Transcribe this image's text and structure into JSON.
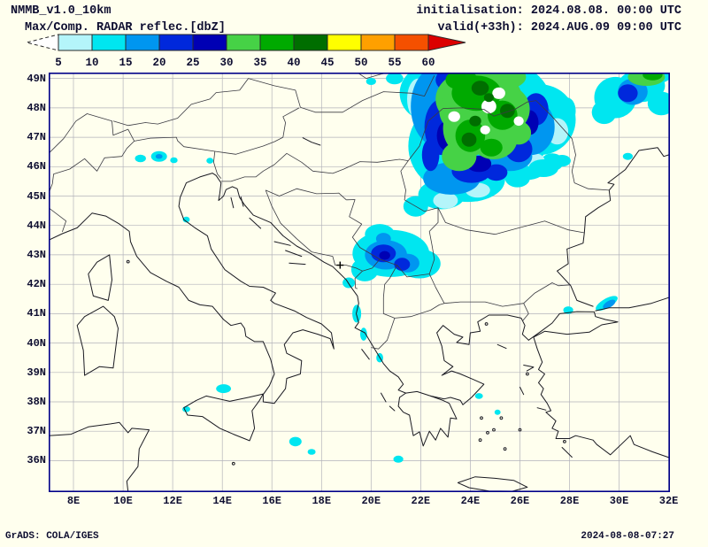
{
  "header": {
    "model": "NMMB_v1.0_10km",
    "product": "Max/Comp. RADAR reflec.[dbZ]",
    "init": "initialisation: 2024.08.08. 00:00 UTC",
    "valid": "valid(+33h): 2024.AUG.09 09:00 UTC"
  },
  "colorbar": {
    "tick_labels": [
      "5",
      "10",
      "15",
      "20",
      "25",
      "30",
      "35",
      "40",
      "45",
      "50",
      "55",
      "60"
    ],
    "tail_color": "#ffffff",
    "head_color": "#dc0000",
    "seg_colors": [
      "#b4f5fa",
      "#00e6f0",
      "#0096f0",
      "#0028dc",
      "#0000b4",
      "#46d246",
      "#00aa00",
      "#006e00",
      "#ffff00",
      "#ffa000",
      "#f55000"
    ]
  },
  "map": {
    "lat_ticks": [
      "49N",
      "48N",
      "47N",
      "46N",
      "45N",
      "44N",
      "43N",
      "42N",
      "41N",
      "40N",
      "39N",
      "38N",
      "37N",
      "36N"
    ],
    "lon_ticks": [
      "8E",
      "10E",
      "12E",
      "14E",
      "16E",
      "18E",
      "20E",
      "22E",
      "24E",
      "26E",
      "28E",
      "30E",
      "32E"
    ],
    "frame_color": "#000089",
    "grid_color": "#b2b2ba",
    "coast_color": "#1a1a22",
    "border_color": "#3a3a42",
    "station_marker": {
      "symbol": "+",
      "lon": 18.75,
      "lat": 42.65
    }
  },
  "radar": {
    "units": "dbZ",
    "cells": [
      [
        24.5,
        48.2,
        2.75,
        1.55,
        1
      ],
      [
        23.2,
        46.7,
        1.7,
        1.5,
        1
      ],
      [
        25.4,
        46.7,
        1.6,
        1.15,
        1
      ],
      [
        26.8,
        47.6,
        1.45,
        1.2,
        1
      ],
      [
        22.5,
        48.5,
        1.35,
        1.0,
        1
      ],
      [
        23.9,
        45.55,
        1.5,
        0.75,
        1
      ],
      [
        22.85,
        45.05,
        0.95,
        0.5,
        1
      ],
      [
        26.3,
        45.95,
        0.75,
        0.4,
        1
      ],
      [
        27.3,
        46.15,
        0.45,
        0.3,
        1
      ],
      [
        21.8,
        44.65,
        0.5,
        0.35,
        1
      ],
      [
        25.9,
        45.6,
        0.5,
        0.3,
        1
      ],
      [
        27.9,
        47.9,
        0.35,
        0.45,
        1
      ],
      [
        21.9,
        48.3,
        0.45,
        0.7,
        0
      ],
      [
        23.0,
        44.85,
        0.5,
        0.28,
        0
      ],
      [
        27.5,
        47.2,
        0.45,
        0.45,
        0
      ],
      [
        26.6,
        46.2,
        0.4,
        0.25,
        0
      ],
      [
        24.3,
        45.2,
        0.5,
        0.25,
        0
      ],
      [
        29.85,
        48.35,
        0.85,
        0.7,
        1
      ],
      [
        30.9,
        48.75,
        0.95,
        0.55,
        1
      ],
      [
        31.7,
        48.15,
        0.55,
        0.4,
        1
      ],
      [
        29.4,
        47.85,
        0.5,
        0.4,
        1
      ],
      [
        31.3,
        49.1,
        0.8,
        0.3,
        1
      ],
      [
        26.95,
        45.95,
        0.6,
        0.3,
        1
      ],
      [
        27.7,
        46.2,
        0.35,
        0.2,
        1
      ],
      [
        20.95,
        49.0,
        0.35,
        0.2,
        1
      ],
      [
        20.0,
        48.9,
        0.2,
        0.12,
        1
      ],
      [
        20.8,
        43.05,
        1.55,
        0.8,
        1
      ],
      [
        21.95,
        42.7,
        0.85,
        0.5,
        1
      ],
      [
        20.35,
        43.7,
        0.6,
        0.35,
        1
      ],
      [
        19.75,
        42.5,
        0.55,
        0.4,
        1
      ],
      [
        19.1,
        42.05,
        0.25,
        0.18,
        1
      ],
      [
        11.45,
        46.35,
        0.32,
        0.18,
        1
      ],
      [
        10.7,
        46.28,
        0.22,
        0.13,
        1
      ],
      [
        12.05,
        46.22,
        0.15,
        0.1,
        1
      ],
      [
        13.5,
        46.2,
        0.14,
        0.1,
        1
      ],
      [
        12.55,
        44.2,
        0.14,
        0.1,
        1
      ],
      [
        19.42,
        41.0,
        0.18,
        0.3,
        1
      ],
      [
        19.7,
        40.3,
        0.14,
        0.22,
        1
      ],
      [
        20.35,
        39.5,
        0.14,
        0.16,
        1
      ],
      [
        14.05,
        38.45,
        0.3,
        0.15,
        1
      ],
      [
        12.55,
        37.75,
        0.16,
        0.1,
        1
      ],
      [
        16.95,
        36.65,
        0.25,
        0.16,
        1
      ],
      [
        17.6,
        36.3,
        0.16,
        0.1,
        1
      ],
      [
        21.1,
        36.05,
        0.2,
        0.12,
        1
      ],
      [
        24.35,
        38.2,
        0.16,
        0.1,
        1
      ],
      [
        25.1,
        37.65,
        0.12,
        0.09,
        1
      ],
      [
        29.5,
        41.35,
        0.5,
        0.16,
        1,
        -30
      ],
      [
        27.95,
        41.12,
        0.2,
        0.13,
        1
      ],
      [
        30.35,
        46.35,
        0.2,
        0.12,
        1
      ],
      [
        22.65,
        48.05,
        1.05,
        1.35,
        2
      ],
      [
        23.25,
        45.6,
        1.15,
        0.55,
        2
      ],
      [
        26.45,
        47.35,
        0.95,
        0.95,
        2
      ],
      [
        25.6,
        46.35,
        0.9,
        0.5,
        2
      ],
      [
        23.4,
        48.95,
        0.9,
        0.45,
        2
      ],
      [
        30.55,
        48.55,
        0.6,
        0.45,
        2
      ],
      [
        20.6,
        43.0,
        0.85,
        0.5,
        2
      ],
      [
        21.45,
        42.72,
        0.5,
        0.32,
        2
      ],
      [
        20.5,
        43.55,
        0.3,
        0.2,
        2
      ],
      [
        29.6,
        41.32,
        0.28,
        0.11,
        2,
        -30
      ],
      [
        11.45,
        46.35,
        0.14,
        0.08,
        2
      ],
      [
        22.85,
        47.35,
        0.7,
        0.95,
        3
      ],
      [
        23.35,
        48.95,
        0.75,
        0.45,
        3
      ],
      [
        24.05,
        45.85,
        0.8,
        0.4,
        3
      ],
      [
        25.95,
        46.6,
        0.55,
        0.45,
        3
      ],
      [
        26.65,
        47.95,
        0.5,
        0.55,
        3
      ],
      [
        25.05,
        45.8,
        0.45,
        0.28,
        3
      ],
      [
        22.4,
        46.4,
        0.35,
        0.55,
        3
      ],
      [
        30.35,
        48.5,
        0.4,
        0.3,
        3
      ],
      [
        20.5,
        43.05,
        0.5,
        0.3,
        3
      ],
      [
        21.25,
        42.68,
        0.32,
        0.22,
        3
      ],
      [
        23.05,
        47.05,
        0.4,
        0.5,
        4
      ],
      [
        24.35,
        46.1,
        0.5,
        0.28,
        4
      ],
      [
        26.4,
        47.5,
        0.35,
        0.42,
        4
      ],
      [
        23.2,
        48.3,
        0.3,
        0.35,
        4
      ],
      [
        20.55,
        42.98,
        0.22,
        0.15,
        4
      ],
      [
        24.35,
        48.3,
        1.75,
        1.05,
        5
      ],
      [
        23.95,
        47.3,
        1.05,
        0.95,
        5
      ],
      [
        24.95,
        46.95,
        0.95,
        0.7,
        5
      ],
      [
        25.45,
        47.95,
        0.95,
        0.8,
        5
      ],
      [
        23.55,
        46.35,
        0.7,
        0.5,
        5
      ],
      [
        24.9,
        49.05,
        1.35,
        0.5,
        5
      ],
      [
        25.95,
        47.15,
        0.5,
        0.4,
        5
      ],
      [
        23.3,
        47.9,
        0.55,
        0.6,
        5
      ],
      [
        31.1,
        49.05,
        0.75,
        0.3,
        5
      ],
      [
        24.25,
        48.5,
        1.0,
        0.6,
        6
      ],
      [
        24.0,
        47.05,
        0.6,
        0.55,
        6
      ],
      [
        25.3,
        47.75,
        0.6,
        0.5,
        6
      ],
      [
        23.65,
        48.95,
        0.65,
        0.35,
        6
      ],
      [
        24.85,
        46.65,
        0.45,
        0.3,
        6
      ],
      [
        31.35,
        49.12,
        0.4,
        0.18,
        6
      ],
      [
        24.75,
        48.05,
        0.3,
        0.24,
        -1
      ],
      [
        25.15,
        48.5,
        0.26,
        0.2,
        -1
      ],
      [
        23.35,
        47.7,
        0.24,
        0.18,
        -1
      ],
      [
        25.95,
        47.55,
        0.2,
        0.16,
        -1
      ],
      [
        24.6,
        47.25,
        0.2,
        0.15,
        -1
      ],
      [
        24.4,
        48.67,
        0.35,
        0.25,
        7
      ],
      [
        23.95,
        46.92,
        0.3,
        0.24,
        7
      ],
      [
        25.5,
        47.9,
        0.3,
        0.24,
        7
      ],
      [
        24.2,
        47.55,
        0.24,
        0.18,
        7
      ],
      [
        24.75,
        48.35,
        0.2,
        0.15,
        7
      ]
    ]
  },
  "footer": {
    "left": "GrADS: COLA/IGES",
    "right": "2024-08-08-07:27"
  }
}
